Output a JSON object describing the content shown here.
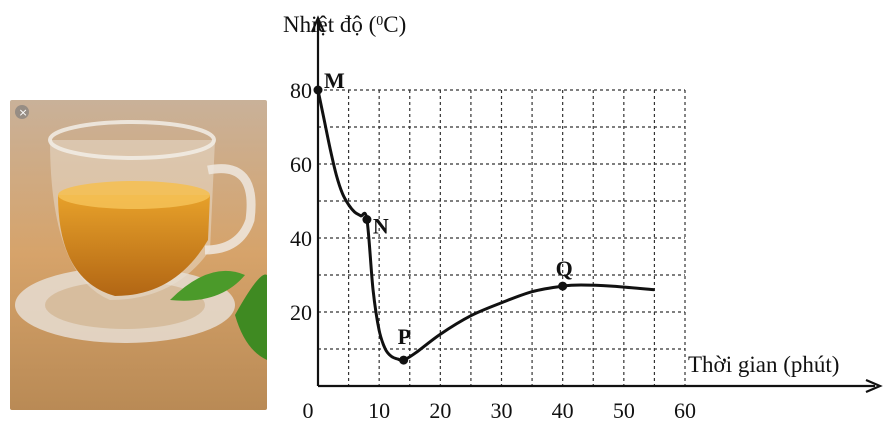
{
  "chart_data": {
    "type": "line",
    "ylabel_main": "Nhiệt độ (",
    "ylabel_sup": "0",
    "ylabel_tail": "C)",
    "xlabel": "Thời gian (phút)",
    "xlim": [
      0,
      60
    ],
    "ylim": [
      0,
      80
    ],
    "x_ticks": [
      0,
      10,
      20,
      30,
      40,
      50,
      60
    ],
    "y_ticks": [
      20,
      40,
      60,
      80
    ],
    "grid": true,
    "curve": [
      [
        0,
        80
      ],
      [
        1,
        72
      ],
      [
        2,
        64
      ],
      [
        3,
        57
      ],
      [
        4,
        52
      ],
      [
        5,
        49
      ],
      [
        6,
        47
      ],
      [
        7,
        46
      ],
      [
        8,
        45
      ],
      [
        9,
        26
      ],
      [
        10,
        15
      ],
      [
        11,
        10
      ],
      [
        12,
        8
      ],
      [
        13,
        7.3
      ],
      [
        14,
        7
      ],
      [
        16,
        9
      ],
      [
        20,
        14
      ],
      [
        25,
        19
      ],
      [
        30,
        22.5
      ],
      [
        35,
        25.5
      ],
      [
        40,
        27
      ],
      [
        43,
        27.3
      ],
      [
        48,
        27
      ],
      [
        55,
        26
      ]
    ],
    "points": [
      {
        "label": "M",
        "x": 0,
        "y": 80
      },
      {
        "label": "N",
        "x": 8,
        "y": 45
      },
      {
        "label": "P",
        "x": 14,
        "y": 7
      },
      {
        "label": "Q",
        "x": 40,
        "y": 27
      }
    ],
    "colors": {
      "line": "#111111",
      "grid": "#333333"
    }
  }
}
